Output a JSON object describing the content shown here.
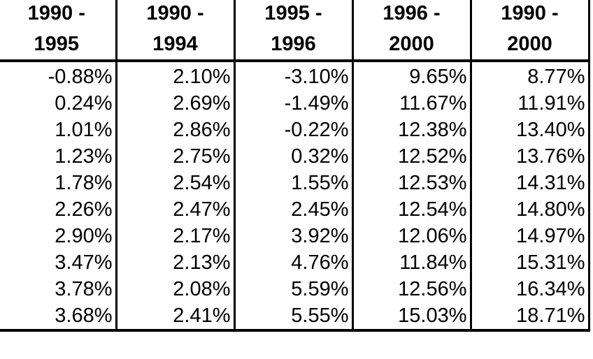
{
  "table": {
    "headers": [
      {
        "line1": "1990 -",
        "line2": "1995"
      },
      {
        "line1": "1990 -",
        "line2": "1994"
      },
      {
        "line1": "1995 -",
        "line2": "1996"
      },
      {
        "line1": "1996 -",
        "line2": "2000"
      },
      {
        "line1": "1990 -",
        "line2": "2000"
      }
    ],
    "rows": [
      [
        "-0.88%",
        "2.10%",
        "-3.10%",
        "9.65%",
        "8.77%"
      ],
      [
        "0.24%",
        "2.69%",
        "-1.49%",
        "11.67%",
        "11.91%"
      ],
      [
        "1.01%",
        "2.86%",
        "-0.22%",
        "12.38%",
        "13.40%"
      ],
      [
        "1.23%",
        "2.75%",
        "0.32%",
        "12.52%",
        "13.76%"
      ],
      [
        "1.78%",
        "2.54%",
        "1.55%",
        "12.53%",
        "14.31%"
      ],
      [
        "2.26%",
        "2.47%",
        "2.45%",
        "12.54%",
        "14.80%"
      ],
      [
        "2.90%",
        "2.17%",
        "3.92%",
        "12.06%",
        "14.97%"
      ],
      [
        "3.47%",
        "2.13%",
        "4.76%",
        "11.84%",
        "15.31%"
      ],
      [
        "3.78%",
        "2.08%",
        "5.59%",
        "12.56%",
        "16.34%"
      ],
      [
        "3.68%",
        "2.41%",
        "5.55%",
        "15.03%",
        "18.71%"
      ]
    ]
  }
}
